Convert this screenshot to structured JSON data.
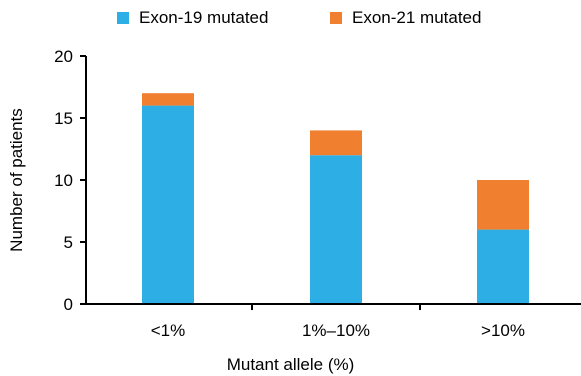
{
  "chart_data": {
    "type": "bar",
    "stacked": true,
    "categories": [
      "<1%",
      "1%–10%",
      ">10%"
    ],
    "series": [
      {
        "name": "Exon-19 mutated",
        "values": [
          16,
          12,
          6
        ],
        "color": "#2daee4"
      },
      {
        "name": "Exon-21 mutated",
        "values": [
          1,
          2,
          4
        ],
        "color": "#f07f30"
      }
    ],
    "xlabel": "Mutant allele (%)",
    "ylabel": "Number of patients",
    "ylim": [
      0,
      20
    ],
    "yticks": [
      0,
      5,
      10,
      15,
      20
    ],
    "grid": false,
    "legend_position": "top"
  }
}
